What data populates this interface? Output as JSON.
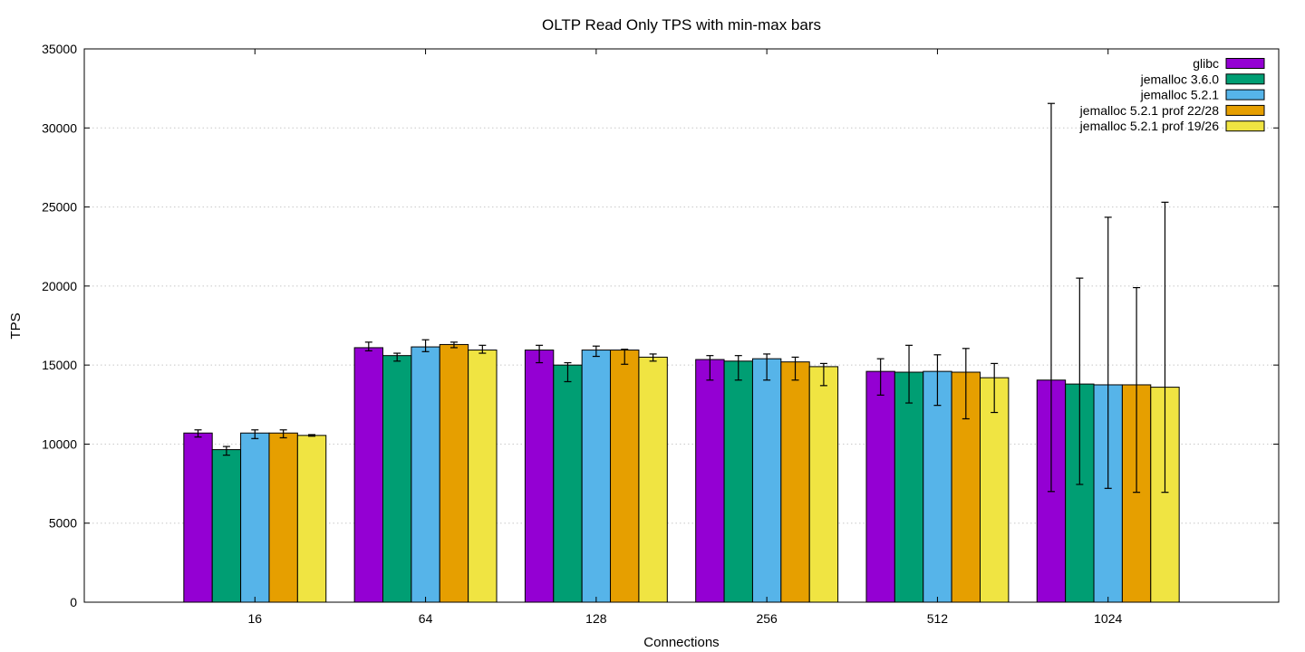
{
  "chart_data": {
    "type": "bar",
    "title": "OLTP Read Only TPS with min-max bars",
    "xlabel": "Connections",
    "ylabel": "TPS",
    "ylim": [
      0,
      35000
    ],
    "yticks": [
      0,
      5000,
      10000,
      15000,
      20000,
      25000,
      30000,
      35000
    ],
    "grid": true,
    "legend_position": "top-right",
    "categories": [
      "16",
      "64",
      "128",
      "256",
      "512",
      "1024"
    ],
    "series": [
      {
        "name": "glibc",
        "color": "#9400d3",
        "values": [
          10700,
          16100,
          15950,
          15350,
          14600,
          14050
        ],
        "min": [
          10450,
          15900,
          15150,
          14050,
          13100,
          7000
        ],
        "max": [
          10900,
          16450,
          16250,
          15600,
          15400,
          31550
        ]
      },
      {
        "name": "jemalloc 3.6.0",
        "color": "#009e73",
        "values": [
          9650,
          15600,
          15000,
          15250,
          14550,
          13800
        ],
        "min": [
          9300,
          15250,
          13950,
          14050,
          12600,
          7450
        ],
        "max": [
          9850,
          15750,
          15150,
          15600,
          16250,
          20500
        ]
      },
      {
        "name": "jemalloc 5.2.1",
        "color": "#56b4e9",
        "values": [
          10700,
          16150,
          15950,
          15400,
          14600,
          13750
        ],
        "min": [
          10350,
          15850,
          15550,
          14050,
          12450,
          7200
        ],
        "max": [
          10900,
          16600,
          16200,
          15700,
          15650,
          24350
        ]
      },
      {
        "name": "jemalloc 5.2.1 prof 22/28",
        "color": "#e69f00",
        "values": [
          10700,
          16300,
          15950,
          15200,
          14550,
          13750
        ],
        "min": [
          10400,
          16100,
          15050,
          14050,
          11600,
          6950
        ],
        "max": [
          10900,
          16450,
          16000,
          15500,
          16050,
          19900
        ]
      },
      {
        "name": "jemalloc 5.2.1 prof 19/26",
        "color": "#f0e442",
        "values": [
          10550,
          15950,
          15500,
          14900,
          14200,
          13600
        ],
        "min": [
          10500,
          15750,
          15250,
          13700,
          12000,
          6950
        ],
        "max": [
          10600,
          16250,
          15700,
          15100,
          15100,
          25300
        ]
      }
    ]
  }
}
